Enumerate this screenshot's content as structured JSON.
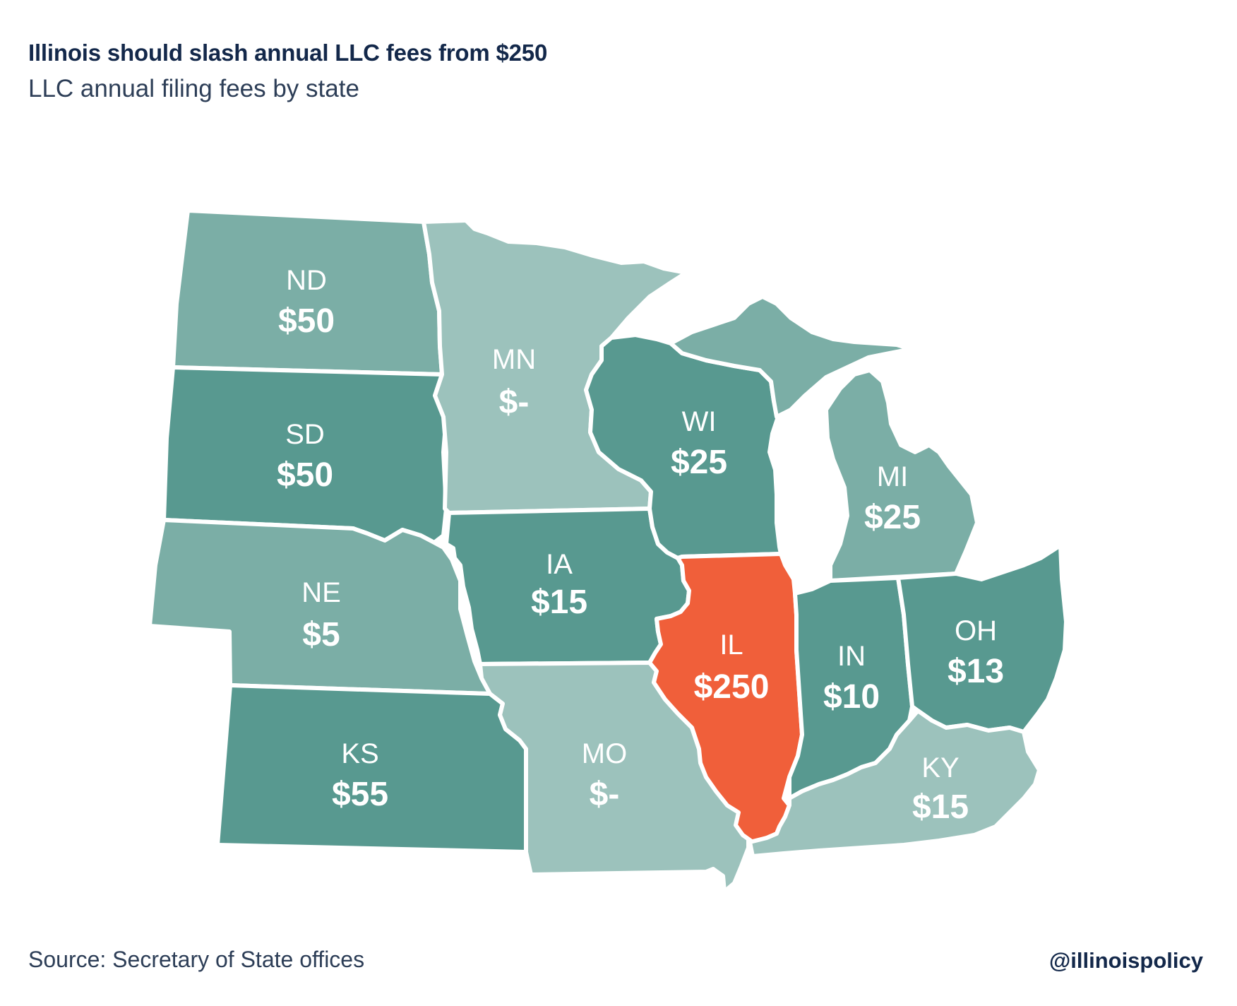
{
  "header": {
    "title": "Illinois should slash annual LLC fees from $250",
    "subtitle": "LLC annual filing fees by state"
  },
  "footer": {
    "source": "Source: Secretary of State offices",
    "handle": "@illinoispolicy"
  },
  "colors": {
    "light": "#9cc2bc",
    "medium": "#7baea6",
    "dark": "#589990",
    "highlight": "#f05f3a"
  },
  "states": [
    {
      "code": "ND",
      "fee": "$50",
      "shade": "medium"
    },
    {
      "code": "SD",
      "fee": "$50",
      "shade": "dark"
    },
    {
      "code": "NE",
      "fee": "$5",
      "shade": "medium"
    },
    {
      "code": "KS",
      "fee": "$55",
      "shade": "dark"
    },
    {
      "code": "MN",
      "fee": "$-",
      "shade": "light"
    },
    {
      "code": "IA",
      "fee": "$15",
      "shade": "dark"
    },
    {
      "code": "MO",
      "fee": "$-",
      "shade": "light"
    },
    {
      "code": "WI",
      "fee": "$25",
      "shade": "dark"
    },
    {
      "code": "IL",
      "fee": "$250",
      "shade": "highlight"
    },
    {
      "code": "MI",
      "fee": "$25",
      "shade": "medium"
    },
    {
      "code": "IN",
      "fee": "$10",
      "shade": "dark"
    },
    {
      "code": "OH",
      "fee": "$13",
      "shade": "dark"
    },
    {
      "code": "KY",
      "fee": "$15",
      "shade": "light"
    }
  ]
}
